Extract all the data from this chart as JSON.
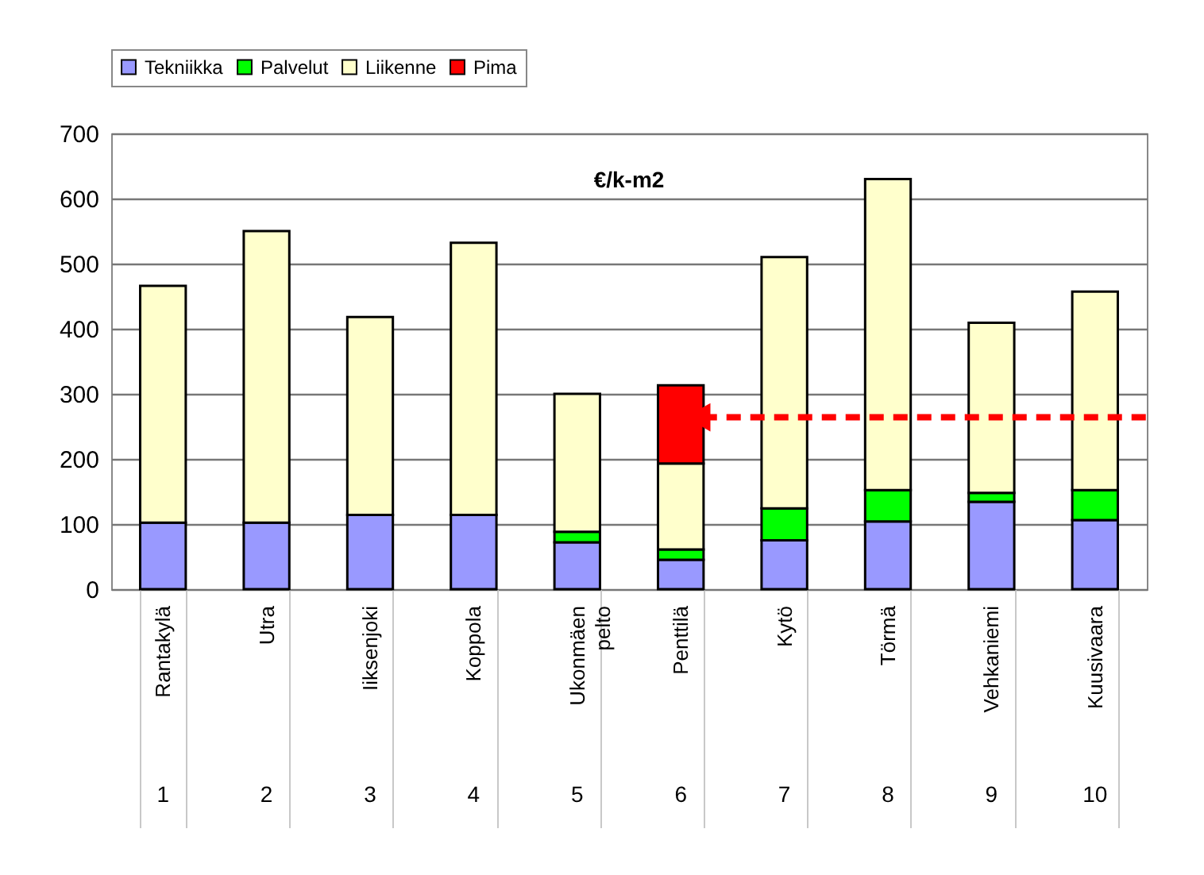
{
  "chart_data": {
    "type": "bar",
    "stacked": true,
    "categories": [
      "Rantakylä",
      "Utra",
      "Iiksenjoki",
      "Koppola",
      "Ukonmäen pelto",
      "Penttilä",
      "Kytö",
      "Törmä",
      "Vehkaniemi",
      "Kuusivaara"
    ],
    "series": [
      {
        "name": "Tekniikka",
        "color": "#9999ff",
        "values": [
          102,
          102,
          114,
          114,
          72,
          45,
          75,
          104,
          134,
          106
        ]
      },
      {
        "name": "Palvelut",
        "color": "#00ff00",
        "values": [
          null,
          null,
          null,
          null,
          16,
          16,
          49,
          48,
          14,
          46
        ]
      },
      {
        "name": "Liikenne",
        "color": "#ffffcc",
        "values": [
          364,
          448,
          304,
          418,
          212,
          132,
          386,
          478,
          261,
          305
        ]
      },
      {
        "name": "Pima",
        "color": "#ff0000",
        "values": [
          null,
          null,
          null,
          null,
          null,
          120,
          null,
          null,
          null,
          null
        ]
      }
    ],
    "ylim": [
      0,
      700
    ],
    "yticks": [
      0,
      100,
      200,
      300,
      400,
      500,
      600,
      700
    ],
    "grid": "y",
    "legend": "top",
    "ref_lines": [
      {
        "axis": "y",
        "value": 264,
        "color": "#ff0000",
        "line_style": "dashed"
      }
    ],
    "annotations": [
      "€/k-m2",
      "1",
      "2",
      "3",
      "4",
      "5",
      "6",
      "7",
      "8",
      "9",
      "10"
    ]
  }
}
